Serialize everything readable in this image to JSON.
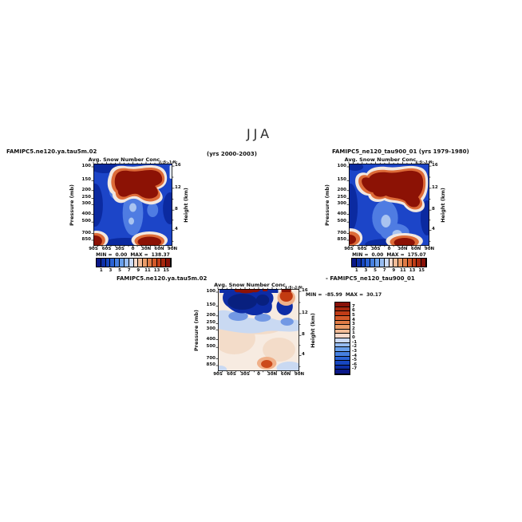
{
  "season": "JJA",
  "headers": {
    "case1_name": "FAMIPC5.ne120.ya.tau5m.02",
    "case1_years": "(yrs 2000-2003)",
    "case2_name": "FAMIPC5_ne120_tau900_01 (yrs 1979-1980)",
    "diff_case1": "FAMIPC5.ne120.ya.tau5m.02",
    "diff_case2": "- FAMIPC5_ne120_tau900_01"
  },
  "axes": {
    "pressure_label": "Pressure (mb)",
    "height_label": "Height (km)",
    "pressure_ticks": [
      "100",
      "150",
      "200",
      "250",
      "300",
      "400",
      "500",
      "700",
      "850"
    ],
    "height_ticks": [
      "16",
      "12",
      "8",
      "4"
    ],
    "lat_ticks": [
      "90S",
      "60S",
      "30S",
      "0",
      "30N",
      "60N",
      "90N"
    ]
  },
  "colorbar": {
    "labels": [
      "1",
      "3",
      "5",
      "7",
      "9",
      "11",
      "13",
      "15"
    ],
    "colors": [
      "#0a1888",
      "#0d2fa6",
      "#1747c0",
      "#2a62d4",
      "#4680e0",
      "#699fea",
      "#97bcf1",
      "#cbdaf7",
      "#f7d9cb",
      "#f1bb97",
      "#ea9c69",
      "#e07b46",
      "#d45a2a",
      "#c03c17",
      "#a6260d",
      "#881108"
    ]
  },
  "diff_colorbar": {
    "labels": [
      "7",
      "6",
      "5",
      "4",
      "3",
      "2",
      "1",
      "0",
      "-1",
      "-2",
      "-3",
      "-4",
      "-5",
      "-6",
      "-7"
    ],
    "colors": [
      "#881108",
      "#a6260d",
      "#c03c17",
      "#d45a2a",
      "#e07b46",
      "#ea9c69",
      "#f1bb97",
      "#f7d9cb",
      "#cbdaf7",
      "#97bcf1",
      "#699fea",
      "#4680e0",
      "#2a62d4",
      "#1747c0",
      "#0d2fa6",
      "#0a1888"
    ]
  },
  "panels": [
    {
      "title": "Avg. Snow Number Conc",
      "title_sub": "L:S:-1:N:",
      "min_label": "MIN =",
      "min": "0.00",
      "max_label": "MAX =",
      "max": "138.37"
    },
    {
      "title": "Avg. Snow Number Conc",
      "title_sub": "L:S:-1:N:",
      "min_label": "MIN =",
      "min": "0.00",
      "max_label": "MAX =",
      "max": "175.07"
    },
    {
      "title": "Avg. Snow Number Conc",
      "title_sub": "L:S:-1:N:",
      "min_label": "MIN =",
      "min": "-85.99",
      "max_label": "MAX =",
      "max": "30.17"
    }
  ],
  "chart_data": [
    {
      "type": "heatmap",
      "title": "Avg. Snow Number Conc L:S:-1:N:",
      "dataset": "FAMIPC5.ne120.ya.tau5m.02 (yrs 2000-2003)",
      "season": "JJA",
      "x_ticks": [
        "90S",
        "60S",
        "30S",
        "0",
        "30N",
        "60N",
        "90N"
      ],
      "ylabel": "Pressure (mb)",
      "y_ticks": [
        100,
        150,
        200,
        250,
        300,
        400,
        500,
        700,
        850
      ],
      "y2label": "Height (km)",
      "y2_ticks": [
        16,
        12,
        8,
        4
      ],
      "contour_level_labels": [
        1,
        3,
        5,
        7,
        9,
        11,
        13,
        15
      ],
      "min": 0.0,
      "max": 138.37,
      "palette": "blue-to-red diverging, 16 bins",
      "features": "high values (>15, dark red) 100-250mb centered 0-60N; secondary maxima near surface 700-850mb at both poles; low values (blue) elsewhere"
    },
    {
      "type": "heatmap",
      "title": "Avg. Snow Number Conc L:S:-1:N:",
      "dataset": "FAMIPC5_ne120_tau900_01 (yrs 1979-1980)",
      "season": "JJA",
      "x_ticks": [
        "90S",
        "60S",
        "30S",
        "0",
        "30N",
        "60N",
        "90N"
      ],
      "ylabel": "Pressure (mb)",
      "y_ticks": [
        100,
        150,
        200,
        250,
        300,
        400,
        500,
        700,
        850
      ],
      "y2label": "Height (km)",
      "y2_ticks": [
        16,
        12,
        8,
        4
      ],
      "contour_level_labels": [
        1,
        3,
        5,
        7,
        9,
        11,
        13,
        15
      ],
      "min": 0.0,
      "max": 175.07,
      "palette": "blue-to-red diverging, 16 bins",
      "features": "broader high-value (dark red) region 100-300mb spanning 60S-90N; near-surface maxima at both poles; blue low values below"
    },
    {
      "type": "heatmap",
      "title": "Avg. Snow Number Conc L:S:-1:N:",
      "dataset": "FAMIPC5.ne120.ya.tau5m.02 - FAMIPC5_ne120_tau900_01 (difference)",
      "season": "JJA",
      "x_ticks": [
        "90S",
        "60S",
        "30S",
        "0",
        "30N",
        "60N",
        "90N"
      ],
      "ylabel": "Pressure (mb)",
      "y_ticks": [
        100,
        150,
        200,
        250,
        300,
        400,
        500,
        700,
        850
      ],
      "y2label": "Height (km)",
      "y2_ticks": [
        16,
        12,
        8,
        4
      ],
      "contour_level_labels": [
        7,
        6,
        5,
        4,
        3,
        2,
        1,
        0,
        -1,
        -2,
        -3,
        -4,
        -5,
        -6,
        -7
      ],
      "min": -85.99,
      "max": 30.17,
      "palette": "red(positive)-to-blue(negative) diverging, 16 bins",
      "features": "strong negative band (dark blue) 100-300mb across 60S-60N with positive (red) sliver at 100mb near 30S-0 and 30N; weak positive near surface ~30N-60N; near-zero pale elsewhere"
    }
  ]
}
